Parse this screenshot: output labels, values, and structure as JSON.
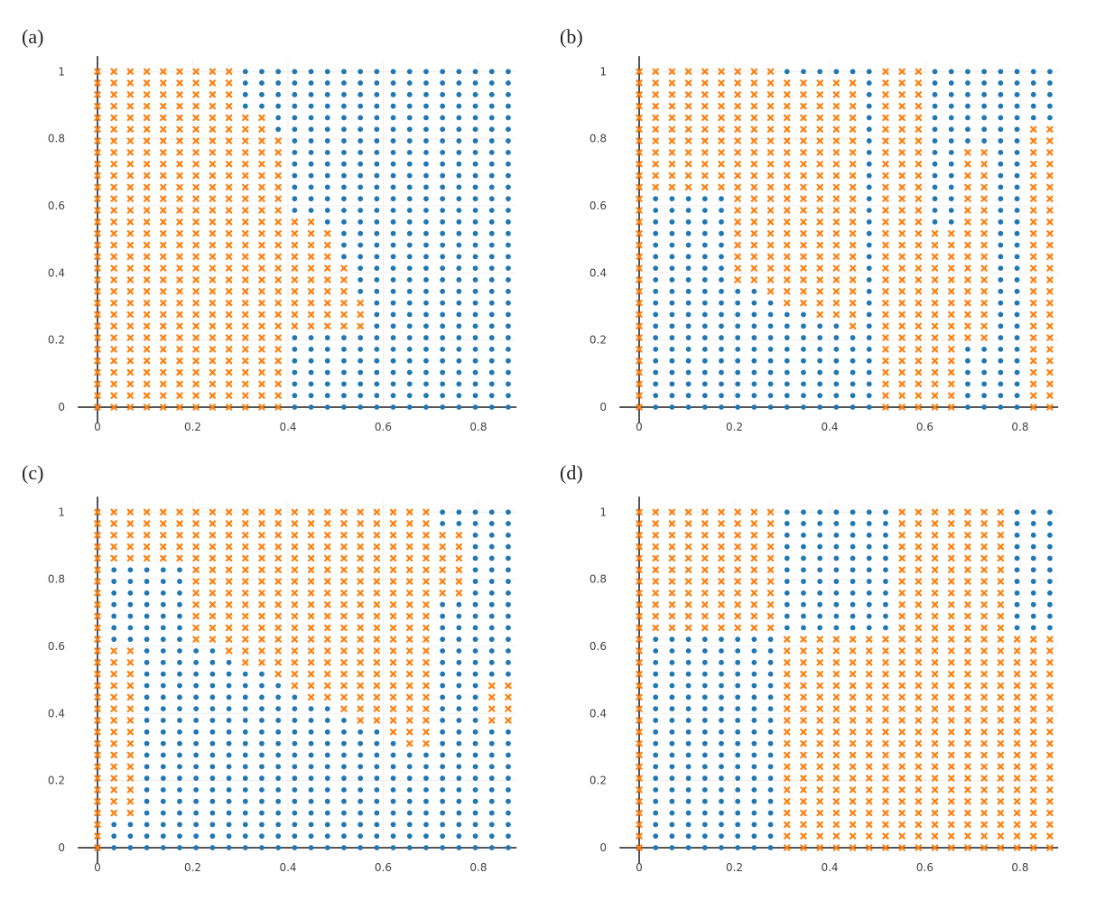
{
  "figure": {
    "colors": {
      "dot": "#1f77b4",
      "cross": "#ff7f0e",
      "grid": "#eeeeee",
      "axis": "#555555"
    }
  },
  "chart_data": [
    {
      "panel_label": "(a)",
      "type": "scatter",
      "title": "",
      "xlabel": "",
      "ylabel": "",
      "xlim": [
        -0.03,
        0.88
      ],
      "ylim": [
        -0.03,
        1.03
      ],
      "x_ticks": [
        "0",
        "0.2",
        "0.4",
        "0.6",
        "0.8"
      ],
      "y_ticks": [
        "0",
        "0.2",
        "0.4",
        "0.6",
        "0.8",
        "1"
      ],
      "grid": true,
      "legend": "none",
      "series": [
        {
          "marker": "x",
          "color": "#ff7f0e",
          "region": "x < 0.41 for y < 0.57; left of boundary from (0.41, 0.57) to (0.37, 0.87) for 0.57 ≤ y < 0.87; x < 0.31 for y ≥ 0.87; plus wedge 0.41 ≤ x < 0.59 for 0.22 ≤ y < 0.57"
        },
        {
          "marker": "circle",
          "color": "#1f77b4",
          "region": "remaining grid points"
        }
      ],
      "grid_points": {
        "x_range": [
          0,
          0.87
        ],
        "x_step": 0.0345,
        "y_range": [
          0,
          1
        ],
        "y_step": 0.0345
      }
    },
    {
      "panel_label": "(b)",
      "type": "scatter",
      "title": "",
      "xlabel": "",
      "ylabel": "",
      "xlim": [
        -0.03,
        0.88
      ],
      "ylim": [
        -0.03,
        1.03
      ],
      "x_ticks": [
        "0",
        "0.2",
        "0.4",
        "0.6",
        "0.8"
      ],
      "y_ticks": [
        "0",
        "0.2",
        "0.4",
        "0.6",
        "0.8",
        "1"
      ],
      "grid": true,
      "legend": "none",
      "series": [
        {
          "marker": "x",
          "color": "#ff7f0e",
          "region": "striped pattern with orange columns near x = 0, 0.2–0.45, 0.5–0.65 and x ≥ 0.8; upper-left orange region above y ≈ 0.63"
        },
        {
          "marker": "circle",
          "color": "#1f77b4",
          "region": "remaining grid points"
        }
      ],
      "grid_points": {
        "x_range": [
          0,
          0.87
        ],
        "x_step": 0.0345,
        "y_range": [
          0,
          1
        ],
        "y_step": 0.0345
      }
    },
    {
      "panel_label": "(c)",
      "type": "scatter",
      "title": "",
      "xlabel": "",
      "ylabel": "",
      "xlim": [
        -0.03,
        0.88
      ],
      "ylim": [
        -0.03,
        1.03
      ],
      "x_ticks": [
        "0",
        "0.2",
        "0.4",
        "0.6",
        "0.8"
      ],
      "y_ticks": [
        "0",
        "0.2",
        "0.4",
        "0.6",
        "0.8",
        "1"
      ],
      "grid": true,
      "legend": "none",
      "series": [
        {
          "marker": "x",
          "color": "#ff7f0e",
          "region": "column x = 0; blob of orange for 0.2 ≤ x < 0.72 above a decreasing boundary; upper-left orange band"
        },
        {
          "marker": "circle",
          "color": "#1f77b4",
          "region": "remaining grid points"
        }
      ],
      "grid_points": {
        "x_range": [
          0,
          0.87
        ],
        "x_step": 0.0345,
        "y_range": [
          0,
          1
        ],
        "y_step": 0.0345
      }
    },
    {
      "panel_label": "(d)",
      "type": "scatter",
      "title": "",
      "xlabel": "",
      "ylabel": "",
      "xlim": [
        -0.03,
        0.88
      ],
      "ylim": [
        -0.03,
        1.03
      ],
      "x_ticks": [
        "0",
        "0.2",
        "0.4",
        "0.6",
        "0.8"
      ],
      "y_ticks": [
        "0",
        "0.2",
        "0.4",
        "0.6",
        "0.8",
        "1"
      ],
      "grid": true,
      "legend": "none",
      "series": [
        {
          "marker": "x",
          "color": "#ff7f0e",
          "region": "x = 0 column; 0 < x < 0.28 for y ≥ 0.65; 0.28 ≤ x < 0.52 for y < 0.65; 0.52 ≤ x < 0.76 for all y; x ≥ 0.76 for y < 0.65"
        },
        {
          "marker": "circle",
          "color": "#1f77b4",
          "region": "remaining grid points"
        }
      ],
      "grid_points": {
        "x_range": [
          0,
          0.87
        ],
        "x_step": 0.0345,
        "y_range": [
          0,
          1
        ],
        "y_step": 0.0345
      }
    }
  ]
}
